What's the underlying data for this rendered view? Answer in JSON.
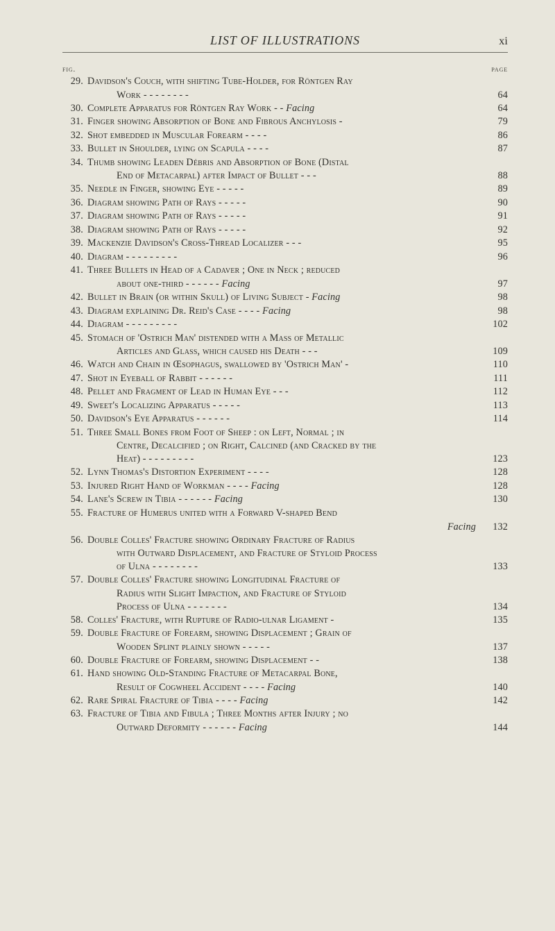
{
  "colors": {
    "background": "#e8e6dc",
    "text": "#2e2e2a",
    "rule": "#6b6a62"
  },
  "typography": {
    "body_family": "Century Schoolbook, Georgia, serif",
    "header_fontsize_pt": 13,
    "body_fontsize_pt": 10.5,
    "small_caps": true
  },
  "header": {
    "title": "LIST OF ILLUSTRATIONS",
    "page_roman": "xi"
  },
  "column_headings": {
    "left": "fig.",
    "right": "page"
  },
  "facing_label": "Facing",
  "entries": [
    {
      "fig": "29.",
      "lines": [
        "Davidson's Couch, with shifting Tube-Holder, for Röntgen Ray",
        "Work -      -      -      -      -      -      -      -"
      ],
      "page": "64"
    },
    {
      "fig": "30.",
      "lines": [
        "Complete Apparatus for Röntgen Ray Work      -      -"
      ],
      "page": "64",
      "facing": true
    },
    {
      "fig": "31.",
      "lines": [
        "Finger showing Absorption of Bone and Fibrous Anchylosis  -"
      ],
      "page": "79"
    },
    {
      "fig": "32.",
      "lines": [
        "Shot embedded in Muscular Forearm      -      -      -      -"
      ],
      "page": "86"
    },
    {
      "fig": "33.",
      "lines": [
        "Bullet in Shoulder, lying on Scapula      -      -      -      -"
      ],
      "page": "87"
    },
    {
      "fig": "34.",
      "lines": [
        "Thumb showing Leaden Débris and Absorption of Bone (Distal",
        "End of Metacarpal) after Impact of Bullet   -      -      -"
      ],
      "page": "88"
    },
    {
      "fig": "35.",
      "lines": [
        "Needle in Finger, showing Eye      -      -      -      -      -"
      ],
      "page": "89"
    },
    {
      "fig": "36.",
      "lines": [
        "Diagram showing Path of Rays      -      -      -      -      -"
      ],
      "page": "90"
    },
    {
      "fig": "37.",
      "lines": [
        "Diagram showing Path of Rays      -      -      -      -      -"
      ],
      "page": "91"
    },
    {
      "fig": "38.",
      "lines": [
        "Diagram showing Path of Rays      -      -      -      -      -"
      ],
      "page": "92"
    },
    {
      "fig": "39.",
      "lines": [
        "Mackenzie Davidson's Cross-Thread Localizer   -      -      -"
      ],
      "page": "95"
    },
    {
      "fig": "40.",
      "lines": [
        "Diagram -      -      -      -      -      -      -      -      -"
      ],
      "page": "96"
    },
    {
      "fig": "41.",
      "lines": [
        "Three Bullets in Head of a Cadaver ; One in Neck ; reduced",
        "about one-third      -      -      -      -      -      -"
      ],
      "page": "97",
      "facing": true
    },
    {
      "fig": "42.",
      "lines": [
        "Bullet in Brain (or within Skull) of Living Subject   -"
      ],
      "page": "98",
      "facing": true
    },
    {
      "fig": "43.",
      "lines": [
        "Diagram explaining Dr. Reid's Case -      -      -      -"
      ],
      "page": "98",
      "facing": true
    },
    {
      "fig": "44.",
      "lines": [
        "Diagram -      -      -      -      -      -      -      -      -"
      ],
      "page": "102"
    },
    {
      "fig": "45.",
      "lines": [
        "Stomach of 'Ostrich Man' distended with a Mass of Metallic",
        "Articles and Glass, which caused his Death      -      -      -"
      ],
      "page": "109"
    },
    {
      "fig": "46.",
      "lines": [
        "Watch and Chain in Œsophagus, swallowed by 'Ostrich Man'  -"
      ],
      "page": "110"
    },
    {
      "fig": "47.",
      "lines": [
        "Shot in Eyeball of Rabbit      -      -      -      -      -      -"
      ],
      "page": "111"
    },
    {
      "fig": "48.",
      "lines": [
        "Pellet and Fragment of Lead in Human Eye      -      -      -"
      ],
      "page": "112"
    },
    {
      "fig": "49.",
      "lines": [
        "Sweet's Localizing Apparatus      -      -      -      -      -"
      ],
      "page": "113"
    },
    {
      "fig": "50.",
      "lines": [
        "Davidson's Eye Apparatus      -      -      -      -      -      -"
      ],
      "page": "114"
    },
    {
      "fig": "51.",
      "lines": [
        "Three Small Bones from Foot of Sheep : on Left, Normal ; in",
        "Centre, Decalcified ; on Right, Calcined (and Cracked by the",
        "Heat) -      -      -      -      -      -      -      -      -"
      ],
      "page": "123"
    },
    {
      "fig": "52.",
      "lines": [
        "Lynn Thomas's Distortion Experiment      -      -      -      -"
      ],
      "page": "128"
    },
    {
      "fig": "53.",
      "lines": [
        "Injured Right Hand of Workman   -      -      -      -"
      ],
      "page": "128",
      "facing": true
    },
    {
      "fig": "54.",
      "lines": [
        "Lane's Screw in Tibia -      -      -      -      -      -"
      ],
      "page": "130",
      "facing": true
    },
    {
      "fig": "55.",
      "lines": [
        "Fracture of Humerus united with a Forward V-shaped Bend"
      ],
      "page": "132",
      "facing": true,
      "facing_alone": true
    },
    {
      "fig": "56.",
      "lines": [
        "Double Colles' Fracture showing Ordinary Fracture of Radius",
        "with Outward Displacement, and Fracture of Styloid Process",
        "of Ulna      -      -      -      -      -      -      -      -"
      ],
      "page": "133"
    },
    {
      "fig": "57.",
      "lines": [
        "Double Colles' Fracture showing Longitudinal Fracture of",
        "Radius with Slight Impaction, and Fracture of Styloid",
        "Process of Ulna      -      -      -      -      -      -      -"
      ],
      "page": "134"
    },
    {
      "fig": "58.",
      "lines": [
        "Colles' Fracture, with Rupture of Radio-ulnar Ligament      -"
      ],
      "page": "135"
    },
    {
      "fig": "59.",
      "lines": [
        "Double Fracture of Forearm, showing Displacement ; Grain of",
        "Wooden Splint plainly shown      -      -      -      -      -"
      ],
      "page": "137"
    },
    {
      "fig": "60.",
      "lines": [
        "Double Fracture of Forearm, showing Displacement      -      -"
      ],
      "page": "138"
    },
    {
      "fig": "61.",
      "lines": [
        "Hand showing Old-Standing Fracture of Metacarpal Bone,",
        "Result of Cogwheel Accident      -      -      -      -"
      ],
      "page": "140",
      "facing": true
    },
    {
      "fig": "62.",
      "lines": [
        "Rare Spiral Fracture of Tibia      -      -      -      -"
      ],
      "page": "142",
      "facing": true
    },
    {
      "fig": "63.",
      "lines": [
        "Fracture of Tibia and Fibula ; Three Months after Injury ; no",
        "Outward Deformity -      -      -      -      -      -"
      ],
      "page": "144",
      "facing": true
    }
  ]
}
